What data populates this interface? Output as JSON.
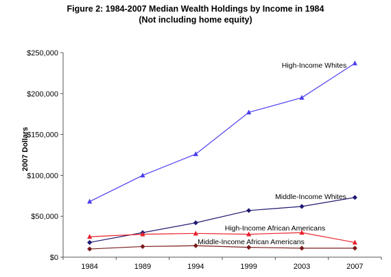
{
  "chart_data": {
    "type": "line",
    "title": "Figure 2: 1984-2007 Median Wealth Holdings by Income  in 1984",
    "subtitle": "(Not including home equity)",
    "xlabel": "",
    "ylabel": "2007 Dollars",
    "categories": [
      "1984",
      "1989",
      "1994",
      "1999",
      "2003",
      "2007"
    ],
    "ylim": [
      0,
      250000
    ],
    "y_ticks": [
      0,
      50000,
      100000,
      150000,
      200000,
      250000
    ],
    "y_tick_labels": [
      "$0",
      "$50,000",
      "$100,000",
      "$150,000",
      "$200,000",
      "$250,000"
    ],
    "grid": false,
    "legend": "none (inline labels)",
    "series": [
      {
        "name": "High-Income Whites",
        "values": [
          68000,
          100000,
          126000,
          177000,
          195000,
          237000
        ],
        "color": "#4b3cf0",
        "marker": "triangle"
      },
      {
        "name": "Middle-Income Whites",
        "values": [
          18000,
          30000,
          42000,
          57000,
          62000,
          73000
        ],
        "color": "#1e1870",
        "marker": "diamond"
      },
      {
        "name": "High-Income African Americans",
        "values": [
          25000,
          28000,
          29000,
          28000,
          30000,
          18000
        ],
        "color": "#e8202a",
        "marker": "triangle"
      },
      {
        "name": "Middle-Income African Americans",
        "values": [
          10000,
          13000,
          14000,
          12000,
          11000,
          11000
        ],
        "color": "#7a1a1a",
        "marker": "diamond"
      }
    ]
  }
}
